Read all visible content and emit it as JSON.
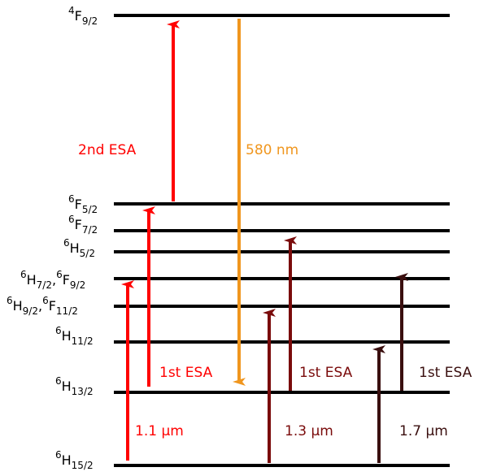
{
  "levels": [
    {
      "id": "4F9_2",
      "label_main": "F",
      "sup": "4",
      "sub": "9/2"
    },
    {
      "id": "6F5_2",
      "label_main": "F",
      "sup": "6",
      "sub": "5/2"
    },
    {
      "id": "6F7_2",
      "label_main": "F",
      "sup": "6",
      "sub": "7/2"
    },
    {
      "id": "6H5_2",
      "label_main": "H",
      "sup": "6",
      "sub": "5/2"
    },
    {
      "id": "6H7_2_6F9_2",
      "parts": [
        {
          "sup": "6",
          "main": "H",
          "sub": "7/2",
          "sep": ","
        },
        {
          "sup": "6",
          "main": "F",
          "sub": "9/2",
          "sep": ""
        }
      ]
    },
    {
      "id": "6H9_2_6F11_2",
      "parts": [
        {
          "sup": "6",
          "main": "H",
          "sub": "9/2",
          "sep": ","
        },
        {
          "sup": "6",
          "main": "F",
          "sub": "11/2",
          "sep": ""
        }
      ]
    },
    {
      "id": "6H11_2",
      "label_main": "H",
      "sup": "6",
      "sub": "11/2"
    },
    {
      "id": "6H13_2",
      "label_main": "H",
      "sup": "6",
      "sub": "13/2"
    },
    {
      "id": "6H15_2",
      "label_main": "H",
      "sup": "6",
      "sub": "15/2"
    }
  ],
  "annotations": {
    "esa2": "2nd ESA",
    "emission": "580 nm",
    "esa1_a": "1st ESA",
    "esa1_b": "1st ESA",
    "esa1_c": "1st ESA",
    "pump_1": "1.1 μm",
    "pump_2": "1.3 μm",
    "pump_3": "1.7 μm"
  },
  "colors": {
    "level_line": "#000000",
    "pump_1": "#ff0000",
    "pump_2": "#7a0b0b",
    "pump_3": "#3a0f0f",
    "emission": "#f0961e"
  }
}
